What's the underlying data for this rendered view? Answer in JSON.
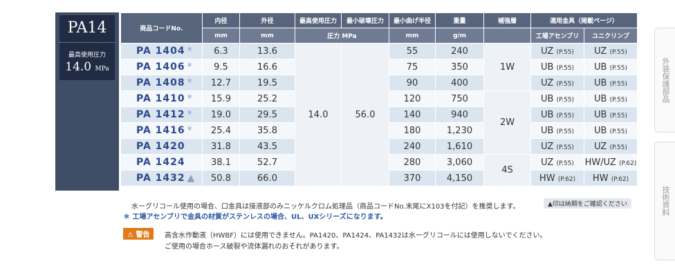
{
  "series_panel": {
    "name": "PA14",
    "pressure_label": "最高使用圧力",
    "pressure_value": "14.0",
    "pressure_unit": "MPa"
  },
  "table": {
    "headers": [
      "商品コードNo.",
      "内径",
      "外径",
      "最高使用圧力",
      "最小破壊圧力",
      "最小曲げ半径",
      "重量",
      "補強層",
      "適用金具（掲載ページ）"
    ],
    "units": [
      "mm",
      "mm",
      "圧力 MPa",
      "mm",
      "g/m"
    ],
    "fitting_headers": [
      "工場アセンブリ",
      "ユニクリンプ"
    ],
    "max_pressure": "14.0",
    "burst_pressure": "56.0",
    "rows": [
      {
        "code": "PA 1404",
        "mark": "*",
        "id": "6.3",
        "od": "13.6",
        "bend": "55",
        "weight": "240",
        "reinforcement": "1W",
        "factory": [
          "UZ",
          "(P.55)"
        ],
        "uniclimp": [
          "UZ",
          "(P.55)"
        ]
      },
      {
        "code": "PA 1406",
        "mark": "*",
        "id": "9.5",
        "od": "16.6",
        "bend": "75",
        "weight": "350",
        "reinforcement": "1W",
        "factory": [
          "UB",
          "(P.55)"
        ],
        "uniclimp": [
          "UB",
          "(P.55)"
        ]
      },
      {
        "code": "PA 1408",
        "mark": "*",
        "id": "12.7",
        "od": "19.5",
        "bend": "90",
        "weight": "400",
        "reinforcement": "1W",
        "factory": [
          "UZ",
          "(P.55)"
        ],
        "uniclimp": [
          "UB",
          "(P.55)"
        ]
      },
      {
        "code": "PA 1410",
        "mark": "*",
        "id": "15.9",
        "od": "25.2",
        "bend": "120",
        "weight": "750",
        "reinforcement": "2W",
        "factory": [
          "UB",
          "(P.55)"
        ],
        "uniclimp": [
          "UB",
          "(P.55)"
        ]
      },
      {
        "code": "PA 1412",
        "mark": "*",
        "id": "19.0",
        "od": "29.5",
        "bend": "140",
        "weight": "940",
        "reinforcement": "2W",
        "factory": [
          "UB",
          "(P.55)"
        ],
        "uniclimp": [
          "UB",
          "(P.55)"
        ]
      },
      {
        "code": "PA 1416",
        "mark": "*",
        "id": "25.4",
        "od": "35.8",
        "bend": "180",
        "weight": "1,230",
        "reinforcement": "2W",
        "factory": [
          "UB",
          "(P.55)"
        ],
        "uniclimp": [
          "UB",
          "(P.55)"
        ]
      },
      {
        "code": "PA 1420",
        "mark": "",
        "id": "31.8",
        "od": "43.5",
        "bend": "240",
        "weight": "1,610",
        "reinforcement": "2W",
        "factory": [
          "UZ",
          "(P.55)"
        ],
        "uniclimp": [
          "UZ",
          "(P.55)"
        ]
      },
      {
        "code": "PA 1424",
        "mark": "",
        "id": "38.1",
        "od": "52.7",
        "bend": "280",
        "weight": "3,060",
        "reinforcement": "4S",
        "factory": [
          "UZ",
          "(P.55)"
        ],
        "uniclimp": [
          "HW/UZ",
          "(P.62)"
        ]
      },
      {
        "code": "PA 1432",
        "mark": "▲",
        "id": "50.8",
        "od": "66.0",
        "bend": "370",
        "weight": "4,150",
        "reinforcement": "4S",
        "factory": [
          "HW",
          "(P.62)"
        ],
        "uniclimp": [
          "HW",
          "(P.62)"
        ]
      }
    ]
  },
  "notes": {
    "note1": "水ーグリコール使用の場合、口金具は接液部のみニッケルクロム処理品（商品コードNo.末尾にX103を付記）を推奨します。",
    "badge": "▲印は納期をご確認ください",
    "note2": "＊ 工場アセンブリで金具の材質がステンレスの場合、UL、UXシリーズになります。"
  },
  "warning": {
    "label": "警告",
    "lines": [
      "高含水作動液（HWBF）には使用できません。PA1420、PA1424、PA1432は水ーグリコールには使用しないでください。",
      "ご使用の場合ホース破裂や流体漏れのおそれがあります。"
    ]
  },
  "side_tabs": [
    "外装保護部品",
    "技術資料"
  ]
}
